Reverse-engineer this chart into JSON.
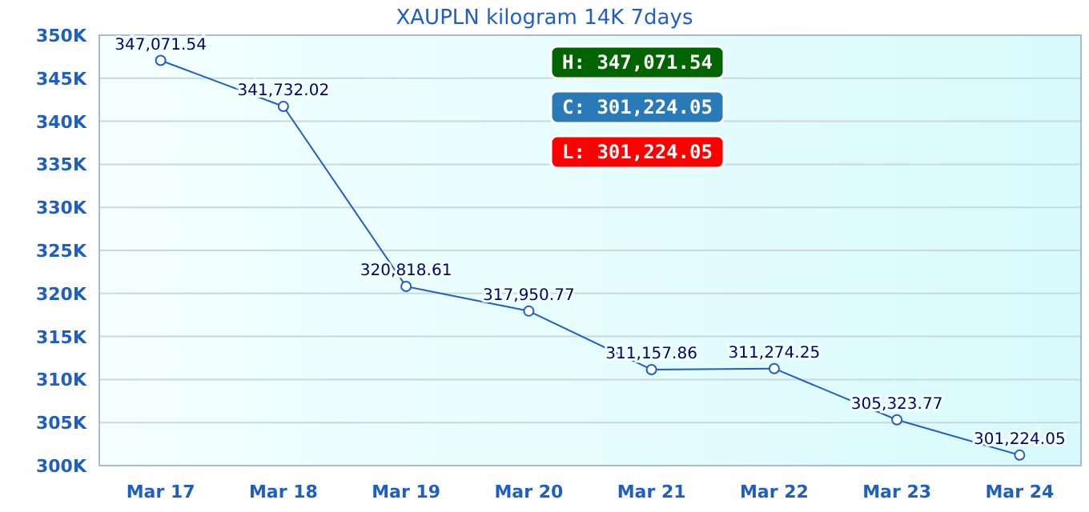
{
  "chart_data": {
    "type": "line",
    "title": "XAUPLN kilogram 14K 7days",
    "categories": [
      "Mar 17",
      "Mar 18",
      "Mar 19",
      "Mar 20",
      "Mar 21",
      "Mar 22",
      "Mar 23",
      "Mar 24"
    ],
    "series": [
      {
        "color": "#1f5fbf",
        "values": [
          347071.54,
          341732.02,
          320818.61,
          317950.77,
          311157.86,
          311274.25,
          305323.77,
          301224.05
        ],
        "value_labels": [
          "347,071.54",
          "341,732.02",
          "320,818.61",
          "317,950.77",
          "311,157.86",
          "311,274.25",
          "305,323.77",
          "301,224.05"
        ]
      }
    ],
    "ylim": [
      300000,
      350000
    ],
    "yticks": [
      {
        "value": 300000,
        "label": "300K"
      },
      {
        "value": 305000,
        "label": "305K"
      },
      {
        "value": 310000,
        "label": "310K"
      },
      {
        "value": 315000,
        "label": "315K"
      },
      {
        "value": 320000,
        "label": "320K"
      },
      {
        "value": 325000,
        "label": "325K"
      },
      {
        "value": 330000,
        "label": "330K"
      },
      {
        "value": 335000,
        "label": "335K"
      },
      {
        "value": 340000,
        "label": "340K"
      },
      {
        "value": 345000,
        "label": "345K"
      },
      {
        "value": 350000,
        "label": "350K"
      }
    ],
    "grid": "y",
    "marker": "circle",
    "line_style": "solid",
    "annotations": [
      "H: 347,071.54",
      "C: 301,224.05",
      "L: 301,224.05"
    ]
  }
}
